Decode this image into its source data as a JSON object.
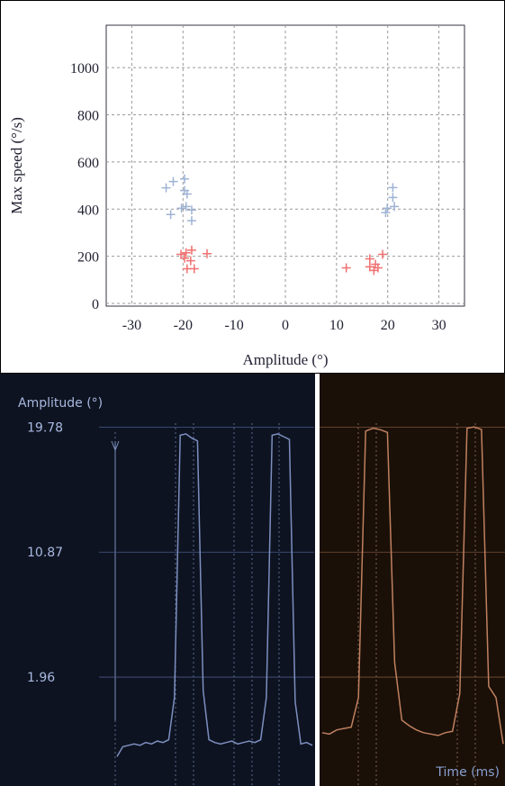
{
  "chart_data": [
    {
      "type": "scatter",
      "x_label": "Amplitude (°)",
      "y_label": "Max speed (°/s)",
      "xlim": [
        -35,
        35
      ],
      "ylim": [
        0,
        1180
      ],
      "xticks": [
        -30,
        -20,
        -10,
        0,
        10,
        20,
        30
      ],
      "yticks": [
        0,
        200,
        400,
        600,
        800,
        1000
      ],
      "grid": true,
      "series": [
        {
          "color": "#9fb3d4",
          "x": [
            -23.3,
            -21.9,
            -19.7,
            -19.7,
            -19.2,
            -22.4,
            -19.4,
            -18.3,
            -18.3,
            -20.3,
            19.9,
            21.0,
            21.0,
            21.3,
            19.6
          ],
          "values": [
            490,
            517,
            528,
            479,
            464,
            377,
            411,
            396,
            351,
            404,
            404,
            449,
            491,
            411,
            385
          ]
        },
        {
          "color": "#f07070",
          "x": [
            -20.4,
            -19.4,
            -18.3,
            -15.3,
            -18.5,
            -19.2,
            -17.8,
            -19.7,
            11.9,
            16.5,
            17.6,
            17.3,
            19.0,
            18.1,
            16.5
          ],
          "values": [
            208,
            215,
            226,
            211,
            181,
            147,
            147,
            192,
            151,
            189,
            166,
            140,
            208,
            151,
            155
          ]
        }
      ]
    },
    {
      "type": "line",
      "y_label": "Amplitude (°)",
      "ylim": [
        -5.8,
        23.4
      ],
      "yticks": [
        1.96,
        10.87,
        19.78
      ],
      "grid": true,
      "color": "#7d8fc0",
      "values": [
        -3.7,
        -3.0,
        -2.9,
        -2.8,
        -2.9,
        -2.7,
        -2.8,
        -2.6,
        -2.7,
        -2.5,
        0.5,
        19.2,
        19.3,
        19.0,
        18.8,
        1.0,
        -2.5,
        -2.7,
        -2.8,
        -2.7,
        -2.6,
        -2.8,
        -2.7,
        -2.6,
        -2.7,
        -2.5,
        0.5,
        19.2,
        19.3,
        19.1,
        18.9,
        0.2,
        -2.8,
        -2.7,
        -2.9
      ]
    },
    {
      "type": "line",
      "x_label": "Time (ms)",
      "ylim": [
        -5.8,
        23.4
      ],
      "grid": true,
      "color": "#c08060",
      "values": [
        -2.0,
        -2.1,
        -1.8,
        -1.7,
        -1.6,
        0.5,
        19.5,
        19.7,
        19.6,
        19.4,
        3.0,
        -1.1,
        -1.5,
        -1.8,
        -2.0,
        -2.1,
        -2.2,
        -2.0,
        -1.9,
        0.8,
        19.7,
        19.8,
        19.6,
        1.3,
        0.5,
        -2.8
      ]
    }
  ]
}
